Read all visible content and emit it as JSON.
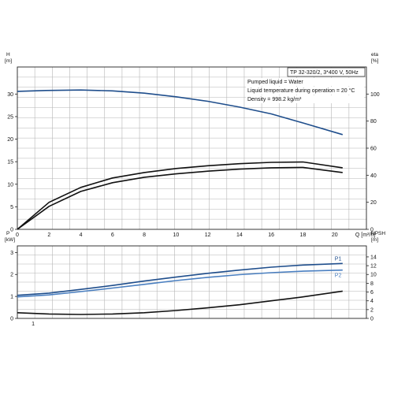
{
  "chart_data": [
    {
      "type": "line",
      "info": {
        "pump": "TP 32-320/2, 3*400 V, 50Hz",
        "lines": [
          "Pumped liquid = Water",
          "Liquid temperature during operation = 20 °C",
          "Density = 998.2 kg/m³"
        ]
      },
      "left_axis": {
        "name": "H",
        "unit": "[m]",
        "range": [
          0,
          36
        ],
        "ticks": [
          0,
          5,
          10,
          15,
          20,
          25,
          30
        ]
      },
      "right_axis": {
        "name": "eta",
        "unit": "[%]",
        "range": [
          0,
          120
        ],
        "ticks": [
          0,
          20,
          40,
          60,
          80,
          100
        ]
      },
      "x_axis": {
        "label": "Q [m³/h]",
        "range": [
          0,
          22
        ],
        "ticks": [
          0,
          2,
          4,
          6,
          8,
          10,
          12,
          14,
          16,
          18,
          20
        ]
      },
      "series": [
        {
          "axis": "left",
          "color": "#1f4e8c",
          "x": [
            0,
            1.8,
            4,
            6,
            8,
            10,
            12,
            14,
            16,
            18,
            20.5
          ],
          "y": [
            30.6,
            30.8,
            30.9,
            30.7,
            30.2,
            29.4,
            28.4,
            27.1,
            25.6,
            23.6,
            21.0
          ]
        },
        {
          "axis": "right",
          "color": "#111111",
          "x": [
            0,
            2,
            4,
            6,
            8,
            10,
            12,
            14,
            16,
            18,
            20.5
          ],
          "y": [
            0,
            20,
            31,
            38,
            42,
            45,
            47,
            48.5,
            49.5,
            49.8,
            45.5
          ]
        },
        {
          "axis": "right",
          "color": "#111111",
          "x": [
            0,
            2,
            4,
            6,
            8,
            10,
            12,
            14,
            16,
            18,
            20.5
          ],
          "y": [
            0,
            17,
            28,
            34.5,
            38.5,
            41,
            43,
            44.5,
            45.5,
            45.8,
            42
          ]
        }
      ]
    },
    {
      "type": "line",
      "left_axis": {
        "name": "P",
        "unit": "[kW]",
        "range": [
          0,
          3.3
        ],
        "ticks": [
          0,
          1,
          2,
          3
        ]
      },
      "right_axis": {
        "name": "NPSH",
        "unit": "[m]",
        "range": [
          0,
          16.5
        ],
        "ticks": [
          0,
          2,
          4,
          6,
          8,
          10,
          12,
          14
        ]
      },
      "x_axis": {
        "range": [
          0,
          22
        ],
        "ticks": [
          1
        ]
      },
      "series": [
        {
          "name": "P1",
          "axis": "left",
          "color": "#1f4e8c",
          "x": [
            0,
            2,
            4,
            6,
            8,
            10,
            12,
            14,
            16,
            18,
            20.5
          ],
          "y": [
            1.05,
            1.15,
            1.32,
            1.5,
            1.7,
            1.88,
            2.05,
            2.2,
            2.33,
            2.43,
            2.5
          ]
        },
        {
          "name": "P2",
          "axis": "left",
          "color": "#4a7fc0",
          "x": [
            0,
            2,
            4,
            6,
            8,
            10,
            12,
            14,
            16,
            18,
            20.5
          ],
          "y": [
            0.98,
            1.07,
            1.22,
            1.38,
            1.55,
            1.72,
            1.87,
            1.99,
            2.08,
            2.15,
            2.2
          ]
        },
        {
          "axis": "right",
          "color": "#111111",
          "x": [
            0,
            2,
            4,
            6,
            8,
            10,
            12,
            14,
            16,
            18,
            20.5
          ],
          "y": [
            1.3,
            1.0,
            0.9,
            1.0,
            1.3,
            1.8,
            2.4,
            3.1,
            4.0,
            4.9,
            6.2
          ]
        }
      ]
    }
  ]
}
